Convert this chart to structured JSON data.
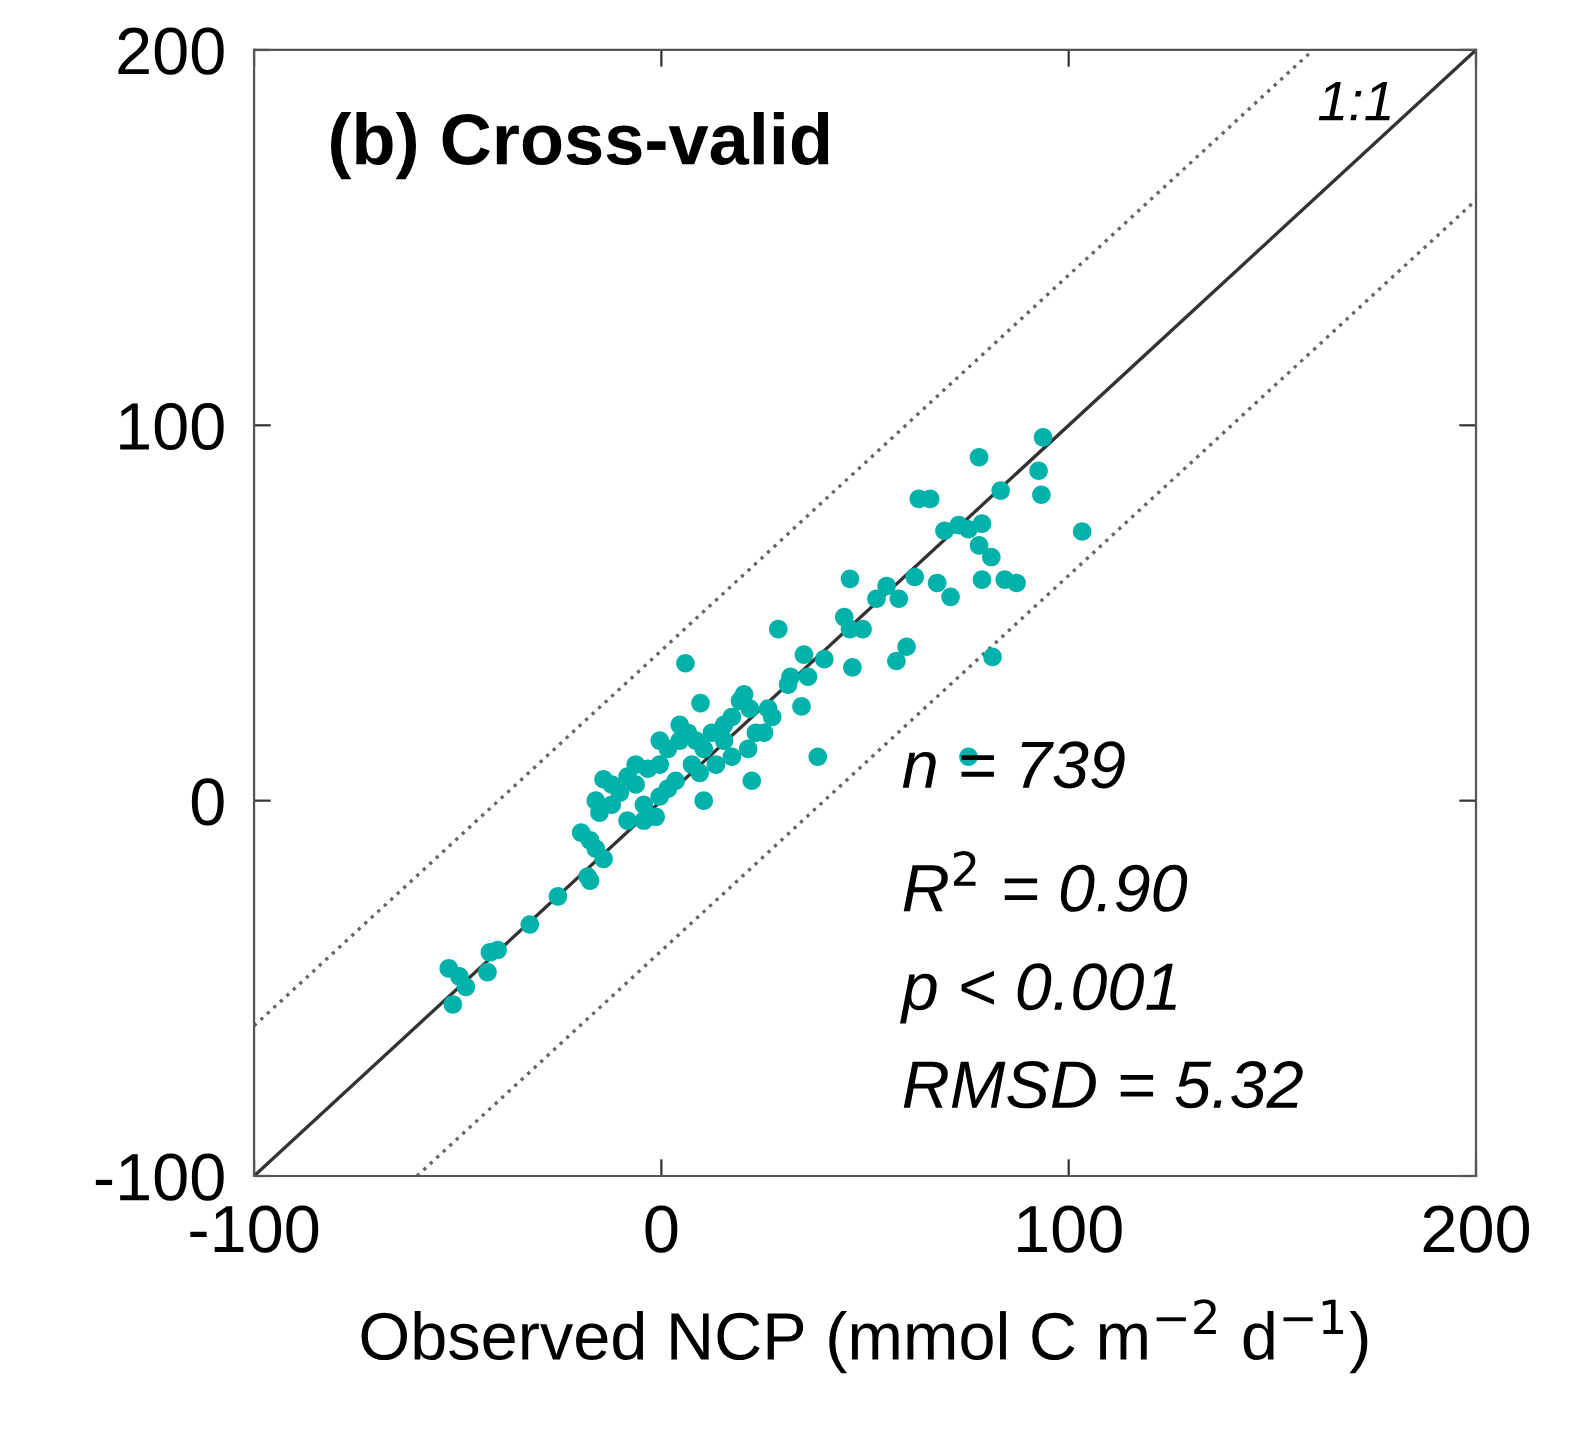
{
  "chart_data": {
    "type": "scatter",
    "title": "(b) Cross-valid",
    "xlabel": "Observed NCP (mmol C m$^{−2}$ d$^{−1}$)",
    "xlim": [
      -100,
      200
    ],
    "ylim": [
      -100,
      200
    ],
    "xticks": [
      -100,
      0,
      100,
      200
    ],
    "yticks": [
      -100,
      0,
      100,
      200
    ],
    "grid": false,
    "marker": "circle",
    "annotations": [
      "n = 739",
      "R$^{2}$ = 0.90",
      "p < 0.001",
      "RMSD = 5.32"
    ],
    "series": [
      {
        "color": "#00b2aa",
        "x": [
          93.7,
          78,
          92.6,
          93.3,
          83.3,
          63.2,
          66,
          103.3,
          69.5,
          73,
          75.4,
          78.7,
          78,
          81,
          78.7,
          84.3,
          87.2,
          67.7,
          71,
          62.2,
          55.3,
          52.8,
          58.3,
          46.3,
          44.9,
          46.3,
          49.4,
          28.7,
          60.2,
          57.7,
          81.3,
          46.9,
          35,
          40,
          31.7,
          36,
          5.9,
          38.4,
          75.4,
          9.6,
          20.3,
          21.7,
          26.2,
          34.4,
          22.2,
          10.4,
          -14.2,
          -16.1,
          -15.2,
          -12.2,
          -8.3,
          -4.3,
          -1.4,
          -19.7,
          -17.5,
          -16.1,
          -14.2,
          -18.1,
          -17.5,
          -25.4,
          -32.3,
          -42.1,
          -40.2,
          -42.7,
          -52.2,
          -49.6,
          -48,
          -51.2,
          -10.2,
          -6.3,
          -3.3,
          -0.4,
          1.6,
          4.5,
          6.5,
          8.5,
          10.4,
          12.4,
          15.4,
          17.3,
          19.3,
          23.2,
          25.2,
          7.5,
          13.4,
          17.3,
          -4.3,
          -0.4,
          -8.3,
          3.5,
          -12.2,
          -6.3,
          -0.4,
          15.4,
          21.3,
          4.5,
          1.6,
          9.4,
          27.2,
          31.1
        ],
        "values": [
          96.8,
          91.5,
          87.9,
          81.5,
          82.6,
          80.4,
          80.4,
          71.7,
          71.9,
          73.4,
          72.3,
          73.8,
          68,
          64.9,
          58.9,
          58.9,
          58,
          58,
          54.3,
          59.6,
          57.2,
          53.8,
          53.8,
          59.1,
          48.9,
          45.7,
          45.7,
          45.7,
          41,
          37.2,
          38.3,
          35.5,
          38.9,
          37.7,
          33,
          33,
          36.6,
          11.7,
          11.7,
          26,
          28.3,
          24.5,
          24.5,
          25.1,
          5.3,
          0,
          5.7,
          0,
          -3.2,
          -1.1,
          -5.3,
          -5.3,
          -4.3,
          -8.5,
          -10.6,
          -12.8,
          -15.5,
          -20.2,
          -21.3,
          -25.5,
          -33,
          -40.4,
          -39.8,
          -45.7,
          -44.7,
          -46.8,
          -49.6,
          -54.3,
          2.1,
          4.3,
          8.5,
          9.6,
          13.8,
          16,
          18.1,
          16,
          13.8,
          18.1,
          20.2,
          22.3,
          26.6,
          18.1,
          18.1,
          9.6,
          9.6,
          11.7,
          -1.1,
          1.1,
          6.4,
          5.3,
          4.3,
          9.6,
          16,
          16,
          13.8,
          20.2,
          3.2,
          7.4,
          22.3,
          30.9
        ]
      },
      {
        "type": "line",
        "name": "1:1",
        "color": "#333333",
        "line_style": "solid",
        "marker": "none",
        "x": [
          -100,
          200
        ],
        "values": [
          -100,
          200
        ]
      },
      {
        "type": "line",
        "color": "#666666",
        "line_style": "dotted",
        "marker": "none",
        "x": [
          -100,
          160
        ],
        "values": [
          -60,
          200
        ]
      },
      {
        "type": "line",
        "color": "#666666",
        "line_style": "dotted",
        "marker": "none",
        "x": [
          -60,
          200
        ],
        "values": [
          -100,
          160
        ]
      }
    ]
  }
}
